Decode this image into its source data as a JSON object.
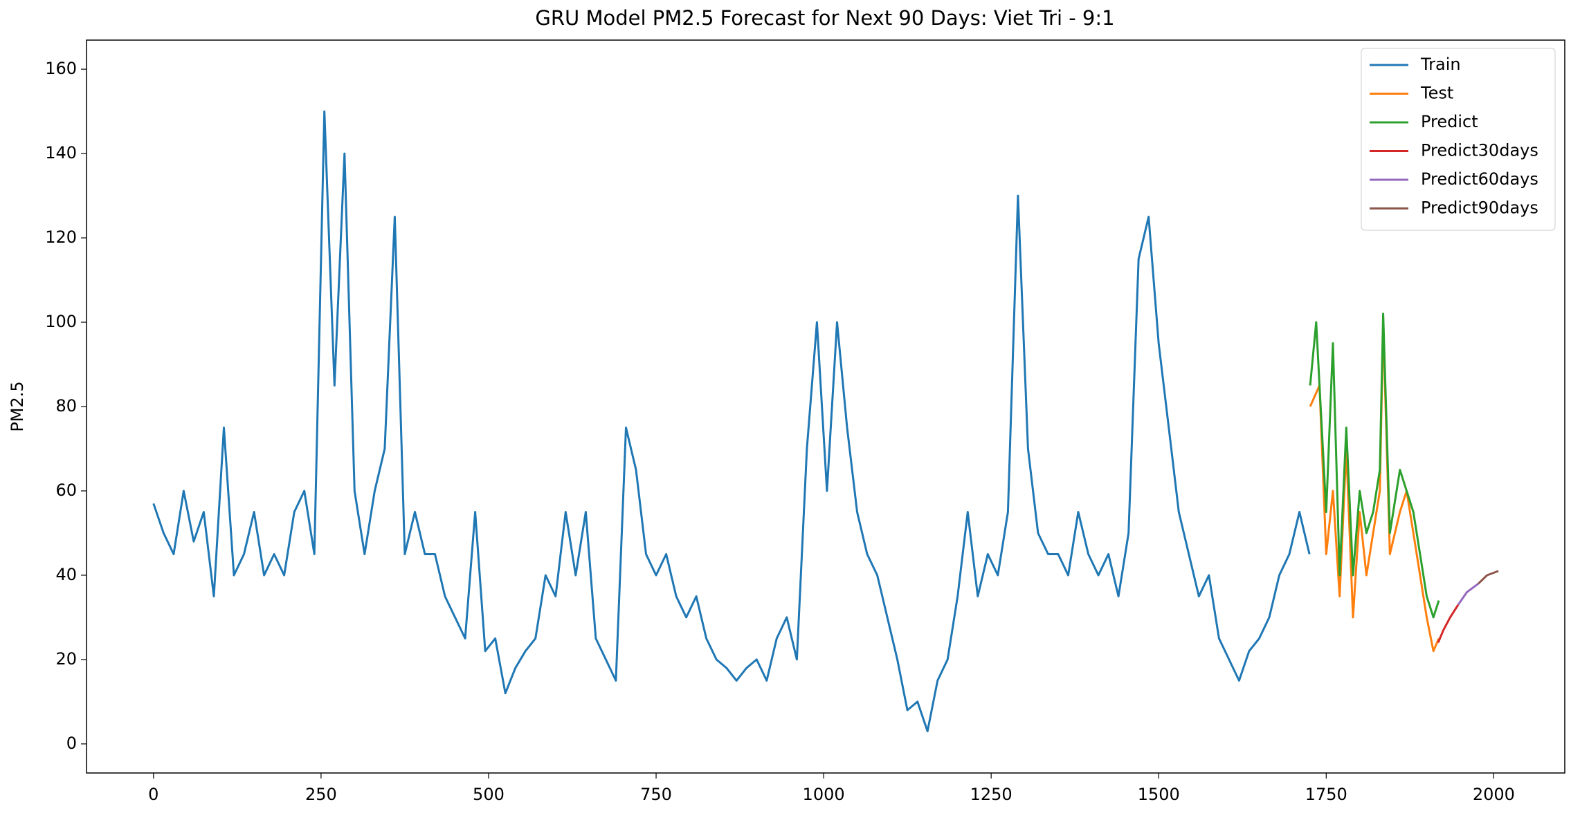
{
  "chart_data": {
    "type": "line",
    "title": "GRU Model PM2.5 Forecast for Next 90 Days: Viet Tri - 9:1",
    "y_label": "PM2.5",
    "xlim": [
      -100,
      2106
    ],
    "xticks": [
      0,
      250,
      500,
      750,
      1000,
      1250,
      1500,
      1750,
      2000
    ],
    "ylim": [
      -6.9,
      166.9
    ],
    "yticks": [
      0,
      20,
      40,
      60,
      80,
      100,
      120,
      140,
      160
    ],
    "legend": "upper right",
    "series": [
      {
        "name": "Train",
        "color": "#1f77b4",
        "x": [
          0,
          15,
          30,
          45,
          60,
          75,
          90,
          105,
          120,
          135,
          150,
          165,
          180,
          195,
          210,
          225,
          240,
          255,
          270,
          285,
          300,
          315,
          330,
          345,
          360,
          375,
          390,
          405,
          420,
          435,
          450,
          465,
          480,
          495,
          510,
          525,
          540,
          555,
          570,
          585,
          600,
          615,
          630,
          645,
          660,
          675,
          690,
          705,
          720,
          735,
          750,
          765,
          780,
          795,
          810,
          825,
          840,
          855,
          870,
          885,
          900,
          915,
          930,
          945,
          960,
          975,
          990,
          1005,
          1020,
          1035,
          1050,
          1065,
          1080,
          1095,
          1110,
          1125,
          1140,
          1155,
          1170,
          1185,
          1200,
          1215,
          1230,
          1245,
          1260,
          1275,
          1290,
          1305,
          1320,
          1335,
          1350,
          1365,
          1380,
          1395,
          1410,
          1425,
          1440,
          1455,
          1470,
          1485,
          1500,
          1515,
          1530,
          1545,
          1560,
          1575,
          1590,
          1605,
          1620,
          1635,
          1650,
          1665,
          1680,
          1695,
          1710,
          1725
        ],
        "values": [
          57,
          50,
          45,
          60,
          48,
          55,
          35,
          75,
          40,
          45,
          55,
          40,
          45,
          40,
          55,
          60,
          45,
          150,
          85,
          140,
          60,
          45,
          60,
          70,
          125,
          45,
          55,
          45,
          45,
          35,
          30,
          25,
          55,
          22,
          25,
          12,
          18,
          22,
          25,
          40,
          35,
          55,
          40,
          55,
          25,
          20,
          15,
          75,
          65,
          45,
          40,
          45,
          35,
          30,
          35,
          25,
          20,
          18,
          15,
          18,
          20,
          15,
          25,
          30,
          20,
          70,
          100,
          60,
          100,
          75,
          55,
          45,
          40,
          30,
          20,
          8,
          10,
          3,
          15,
          20,
          35,
          55,
          35,
          45,
          40,
          55,
          130,
          70,
          50,
          45,
          45,
          40,
          55,
          45,
          40,
          45,
          35,
          50,
          115,
          125,
          95,
          75,
          55,
          45,
          35,
          40,
          25,
          20,
          15,
          22,
          25,
          30,
          40,
          45,
          55,
          45
        ]
      },
      {
        "name": "Test",
        "color": "#ff7f0e",
        "x": [
          1726,
          1740,
          1750,
          1760,
          1770,
          1780,
          1790,
          1800,
          1810,
          1820,
          1830,
          1835,
          1845,
          1860,
          1870,
          1880,
          1890,
          1900,
          1910,
          1918
        ],
        "values": [
          80,
          85,
          45,
          60,
          35,
          70,
          30,
          55,
          40,
          50,
          60,
          100,
          45,
          55,
          60,
          50,
          40,
          30,
          22,
          25
        ]
      },
      {
        "name": "Predict",
        "color": "#2ca02c",
        "x": [
          1726,
          1735,
          1750,
          1760,
          1770,
          1780,
          1790,
          1800,
          1810,
          1820,
          1830,
          1835,
          1845,
          1860,
          1870,
          1880,
          1890,
          1900,
          1910,
          1918
        ],
        "values": [
          85,
          100,
          55,
          95,
          40,
          75,
          40,
          60,
          50,
          55,
          65,
          102,
          50,
          65,
          60,
          55,
          45,
          35,
          30,
          34
        ]
      },
      {
        "name": "Predict30days",
        "color": "#d62728",
        "x": [
          1917,
          1925,
          1935,
          1947
        ],
        "values": [
          24,
          27,
          30,
          33
        ]
      },
      {
        "name": "Predict60days",
        "color": "#9467bd",
        "x": [
          1947,
          1960,
          1977
        ],
        "values": [
          33,
          36,
          38
        ]
      },
      {
        "name": "Predict90days",
        "color": "#8c564b",
        "x": [
          1977,
          1990,
          2007
        ],
        "values": [
          38,
          40,
          41
        ]
      }
    ]
  }
}
